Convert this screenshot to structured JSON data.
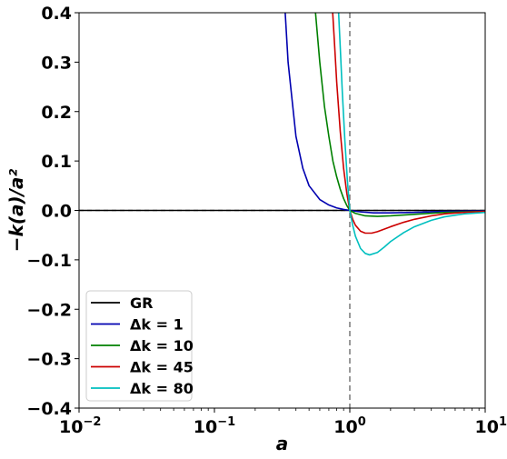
{
  "chart_data": {
    "type": "line",
    "title": "",
    "xlabel": "a",
    "ylabel": "−k(a)/a²",
    "xscale": "log",
    "xlim": [
      0.01,
      10
    ],
    "ylim": [
      -0.4,
      0.4
    ],
    "x_ticks": [
      {
        "value": 0.01,
        "base": "10",
        "exp": "−2"
      },
      {
        "value": 0.1,
        "base": "10",
        "exp": "−1"
      },
      {
        "value": 1,
        "base": "10",
        "exp": "0"
      },
      {
        "value": 10,
        "base": "10",
        "exp": "1"
      }
    ],
    "y_ticks": [
      {
        "value": -0.4,
        "label": "−0.4"
      },
      {
        "value": -0.3,
        "label": "−0.3"
      },
      {
        "value": -0.2,
        "label": "−0.2"
      },
      {
        "value": -0.1,
        "label": "−0.1"
      },
      {
        "value": 0.0,
        "label": "0.0"
      },
      {
        "value": 0.1,
        "label": "0.1"
      },
      {
        "value": 0.2,
        "label": "0.2"
      },
      {
        "value": 0.3,
        "label": "0.3"
      },
      {
        "value": 0.4,
        "label": "0.4"
      }
    ],
    "grid": false,
    "legend": "lower-left",
    "reference_lines": [
      {
        "orientation": "vertical",
        "value": 1,
        "style": "dashed",
        "color": "#808080"
      },
      {
        "orientation": "horizontal",
        "value": 0,
        "style": "dashed",
        "color": "#000000"
      }
    ],
    "series": [
      {
        "name": "GR",
        "legend_label": "GR",
        "color": "#000000",
        "x": [
          0.01,
          0.1,
          1,
          10
        ],
        "y": [
          0,
          0,
          0,
          0
        ]
      },
      {
        "name": "Δk = 1",
        "legend_label": "Δk = 1",
        "color": "#0000b0",
        "x": [
          0.33,
          0.35,
          0.4,
          0.45,
          0.5,
          0.6,
          0.7,
          0.8,
          0.9,
          1.0,
          1.2,
          1.5,
          2,
          3,
          5,
          10
        ],
        "y": [
          0.42,
          0.3,
          0.15,
          0.085,
          0.05,
          0.022,
          0.011,
          0.005,
          0.002,
          0.0,
          -0.003,
          -0.005,
          -0.005,
          -0.004,
          -0.002,
          -0.001
        ]
      },
      {
        "name": "Δk = 10",
        "legend_label": "Δk = 10",
        "color": "#008000",
        "x": [
          0.55,
          0.6,
          0.65,
          0.7,
          0.75,
          0.8,
          0.85,
          0.9,
          0.95,
          1.0,
          1.1,
          1.3,
          1.6,
          2,
          3,
          5,
          10
        ],
        "y": [
          0.42,
          0.3,
          0.21,
          0.15,
          0.1,
          0.068,
          0.043,
          0.024,
          0.01,
          0.0,
          -0.006,
          -0.011,
          -0.012,
          -0.011,
          -0.008,
          -0.004,
          -0.002
        ]
      },
      {
        "name": "Δk = 45",
        "legend_label": "Δk = 45",
        "color": "#cc0000",
        "x": [
          0.74,
          0.77,
          0.8,
          0.85,
          0.9,
          0.95,
          1.0,
          1.05,
          1.1,
          1.2,
          1.3,
          1.45,
          1.6,
          2,
          2.5,
          3,
          4,
          5,
          7,
          10
        ],
        "y": [
          0.42,
          0.34,
          0.26,
          0.16,
          0.085,
          0.035,
          0.0,
          -0.018,
          -0.03,
          -0.042,
          -0.046,
          -0.046,
          -0.043,
          -0.033,
          -0.024,
          -0.018,
          -0.011,
          -0.007,
          -0.004,
          -0.002
        ]
      },
      {
        "name": "Δk = 80",
        "legend_label": "Δk = 80",
        "color": "#00bfbf",
        "x": [
          0.82,
          0.85,
          0.88,
          0.92,
          0.96,
          1.0,
          1.05,
          1.1,
          1.2,
          1.3,
          1.4,
          1.6,
          1.8,
          2,
          2.5,
          3,
          4,
          5,
          7,
          10
        ],
        "y": [
          0.42,
          0.33,
          0.24,
          0.14,
          0.06,
          0.0,
          -0.03,
          -0.052,
          -0.077,
          -0.087,
          -0.09,
          -0.085,
          -0.074,
          -0.063,
          -0.045,
          -0.033,
          -0.02,
          -0.013,
          -0.007,
          -0.004
        ]
      }
    ]
  }
}
